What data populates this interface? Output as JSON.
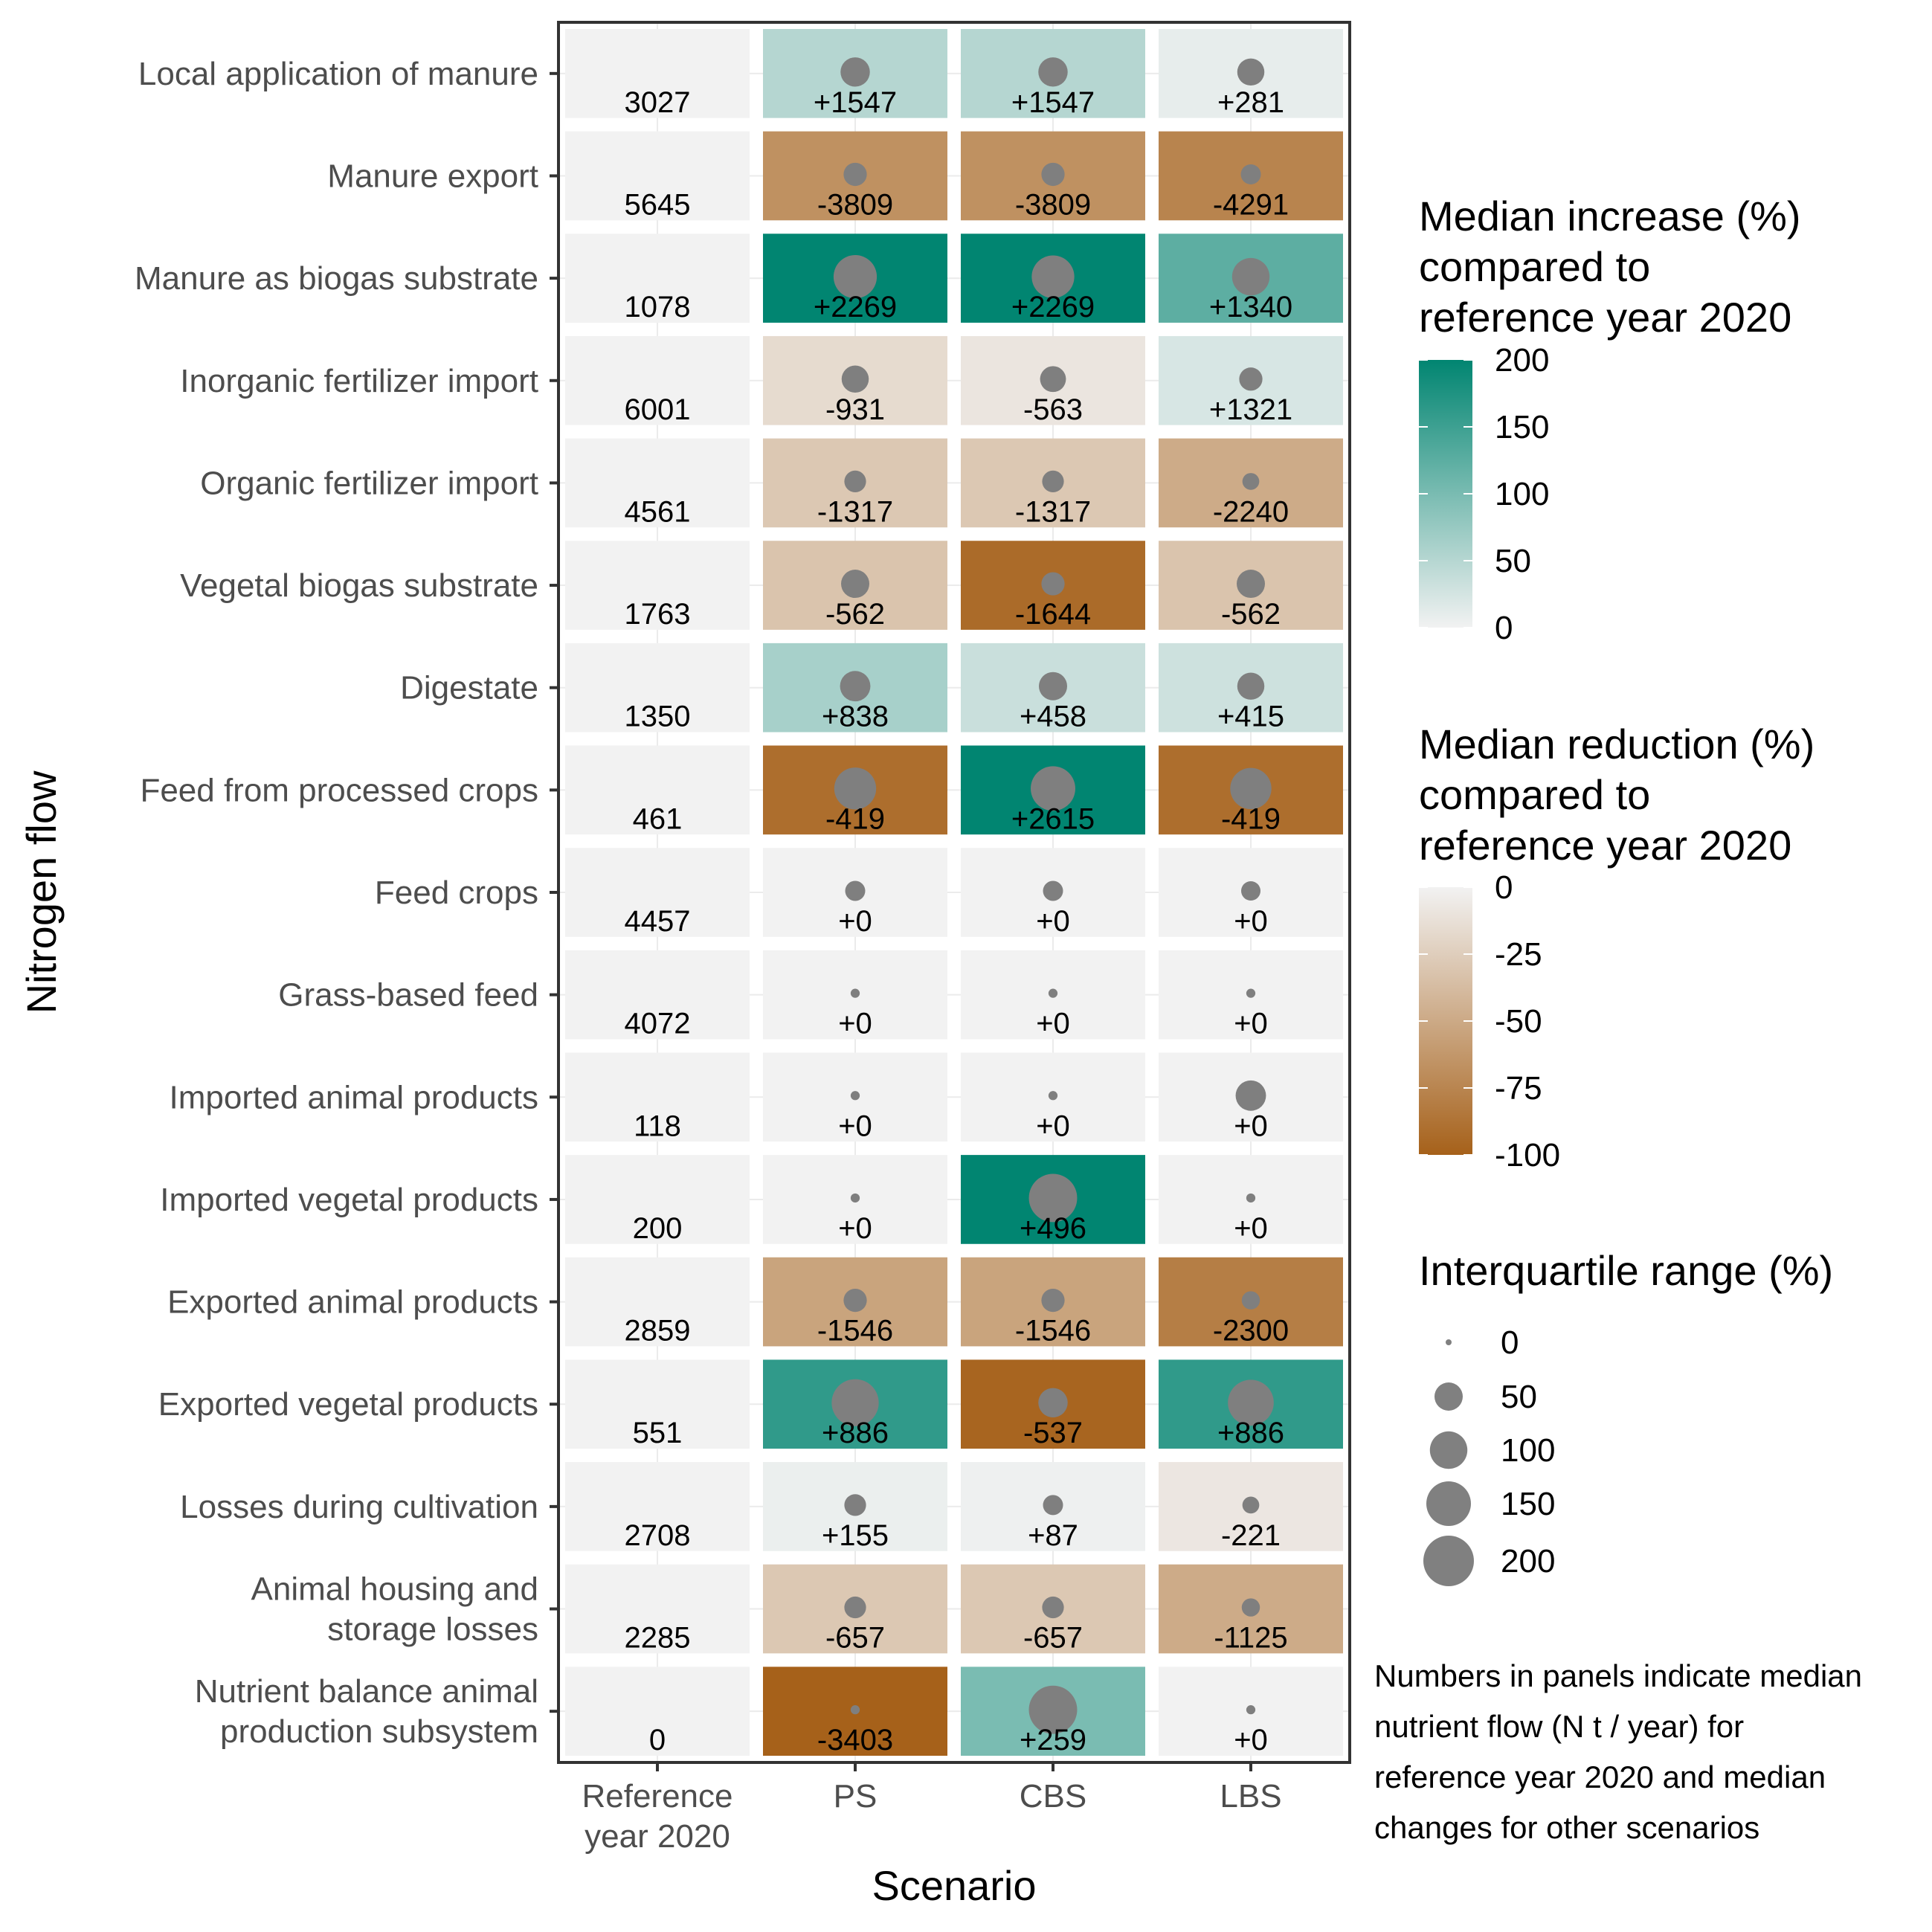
{
  "chart_data": {
    "type": "heatmap",
    "xlabel": "Scenario",
    "ylabel": "Nitrogen flow",
    "columns": [
      "Reference\nyear 2020",
      "PS",
      "CBS",
      "LBS"
    ],
    "rows": [
      {
        "label": "Local application of manure",
        "ref": "3027",
        "values": [
          "+1547",
          "+1547",
          "+281"
        ],
        "pct": [
          51,
          51,
          9
        ],
        "iqr": [
          55,
          55,
          45
        ]
      },
      {
        "label": "Manure export",
        "ref": "5645",
        "values": [
          "-3809",
          "-3809",
          "-4291"
        ],
        "pct": [
          -67,
          -67,
          -76
        ],
        "iqr": [
          30,
          30,
          20
        ]
      },
      {
        "label": "Manure as biogas substrate",
        "ref": "1078",
        "values": [
          "+2269",
          "+2269",
          "+1340"
        ],
        "pct": [
          210,
          210,
          124
        ],
        "iqr": [
          140,
          135,
          100
        ]
      },
      {
        "label": "Inorganic fertilizer import",
        "ref": "6001",
        "values": [
          "-931",
          "-563",
          "+1321"
        ],
        "pct": [
          -16,
          -9,
          22
        ],
        "iqr": [
          45,
          40,
          30
        ]
      },
      {
        "label": "Organic fertilizer import",
        "ref": "4561",
        "values": [
          "-1317",
          "-1317",
          "-2240"
        ],
        "pct": [
          -29,
          -29,
          -49
        ],
        "iqr": [
          25,
          25,
          12
        ]
      },
      {
        "label": "Vegetal biogas substrate",
        "ref": "1763",
        "values": [
          "-562",
          "-1644",
          "-562"
        ],
        "pct": [
          -32,
          -93,
          -32
        ],
        "iqr": [
          50,
          30,
          50
        ]
      },
      {
        "label": "Digestate",
        "ref": "1350",
        "values": [
          "+838",
          "+458",
          "+415"
        ],
        "pct": [
          62,
          34,
          31
        ],
        "iqr": [
          60,
          50,
          45
        ]
      },
      {
        "label": "Feed from processed crops",
        "ref": "461",
        "values": [
          "-419",
          "+2615",
          "-419"
        ],
        "pct": [
          -91,
          567,
          -91
        ],
        "iqr": [
          130,
          150,
          125
        ]
      },
      {
        "label": "Feed crops",
        "ref": "4457",
        "values": [
          "+0",
          "+0",
          "+0"
        ],
        "pct": [
          0,
          0,
          0
        ],
        "iqr": [
          20,
          20,
          18
        ]
      },
      {
        "label": "Grass-based feed",
        "ref": "4072",
        "values": [
          "+0",
          "+0",
          "+0"
        ],
        "pct": [
          0,
          0,
          0
        ],
        "iqr": [
          1,
          1,
          1
        ]
      },
      {
        "label": "Imported animal products",
        "ref": "118",
        "values": [
          "+0",
          "+0",
          "+0"
        ],
        "pct": [
          0,
          0,
          0
        ],
        "iqr": [
          1,
          1,
          60
        ]
      },
      {
        "label": "Imported vegetal products",
        "ref": "200",
        "values": [
          "+0",
          "+496",
          "+0"
        ],
        "pct": [
          0,
          248,
          0
        ],
        "iqr": [
          1,
          180,
          1
        ]
      },
      {
        "label": "Exported animal products",
        "ref": "2859",
        "values": [
          "-1546",
          "-1546",
          "-2300"
        ],
        "pct": [
          -54,
          -54,
          -80
        ],
        "iqr": [
          30,
          30,
          15
        ]
      },
      {
        "label": "Exported vegetal products",
        "ref": "551",
        "values": [
          "+886",
          "-537",
          "+886"
        ],
        "pct": [
          161,
          -97,
          161
        ],
        "iqr": [
          170,
          55,
          160
        ]
      },
      {
        "label": "Losses during cultivation",
        "ref": "2708",
        "values": [
          "+155",
          "+87",
          "-221"
        ],
        "pct": [
          6,
          3,
          -8
        ],
        "iqr": [
          25,
          20,
          12
        ]
      },
      {
        "label": "Animal housing and\nstorage losses",
        "ref": "2285",
        "values": [
          "-657",
          "-657",
          "-1125"
        ],
        "pct": [
          -29,
          -29,
          -49
        ],
        "iqr": [
          25,
          25,
          15
        ]
      },
      {
        "label": "Nutrient balance animal\nproduction subsystem",
        "ref": "0",
        "values": [
          "-3403",
          "+259",
          "+0"
        ],
        "pct": [
          -100,
          100,
          0
        ],
        "iqr": [
          1,
          180,
          1
        ]
      }
    ],
    "legend_increase": {
      "title": [
        "Median increase (%)",
        "compared to",
        "reference year 2020"
      ],
      "ticks": [
        "200",
        "150",
        "100",
        "50",
        "0"
      ],
      "range": [
        0,
        200
      ],
      "colors": [
        "#f2f2f2",
        "#018571"
      ]
    },
    "legend_reduction": {
      "title": [
        "Median reduction (%)",
        "compared to",
        "reference year 2020"
      ],
      "ticks": [
        "0",
        "-25",
        "-50",
        "-75",
        "-100"
      ],
      "range": [
        -100,
        0
      ],
      "colors": [
        "#f2f2f2",
        "#a6611a"
      ]
    },
    "legend_size": {
      "title": "Interquartile range (%)",
      "ticks": [
        "0",
        "50",
        "100",
        "150",
        "200"
      ],
      "values": [
        0,
        50,
        100,
        150,
        200
      ],
      "color": "#808080"
    },
    "note": [
      "Numbers in panels indicate median",
      "nutrient flow (N t / year) for",
      "reference year 2020 and median",
      "changes for other scenarios"
    ],
    "neutral_color": "#f2f2f2",
    "point_color": "#7f7f7f"
  }
}
